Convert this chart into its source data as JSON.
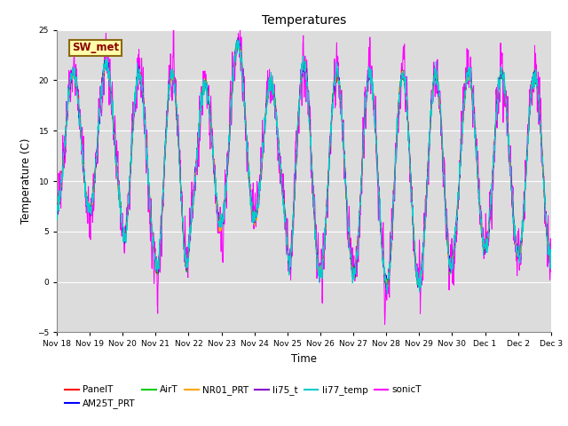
{
  "title": "Temperatures",
  "xlabel": "Time",
  "ylabel": "Temperature (C)",
  "ylim": [
    -5,
    25
  ],
  "yticks": [
    -5,
    0,
    5,
    10,
    15,
    20,
    25
  ],
  "series": [
    "PanelT",
    "AM25T_PRT",
    "AirT",
    "NR01_PRT",
    "li75_t",
    "li77_temp",
    "sonicT"
  ],
  "colors": [
    "#ff0000",
    "#0000ff",
    "#00cc00",
    "#ffa500",
    "#8800cc",
    "#00cccc",
    "#ff00ff"
  ],
  "annotation_text": "SW_met",
  "background_color": "#dcdcdc",
  "grid_color": "#ffffff",
  "n_days": 15,
  "ppd": 144,
  "day_peaks": [
    21,
    22,
    21,
    21,
    20,
    24,
    20,
    22,
    21,
    21,
    21,
    21,
    21,
    21,
    21
  ],
  "day_troughs": [
    7,
    7,
    3,
    0,
    5,
    6,
    6,
    0,
    1,
    0,
    -1,
    0,
    3,
    3,
    2
  ],
  "sonic_extra_noise": 2.5
}
